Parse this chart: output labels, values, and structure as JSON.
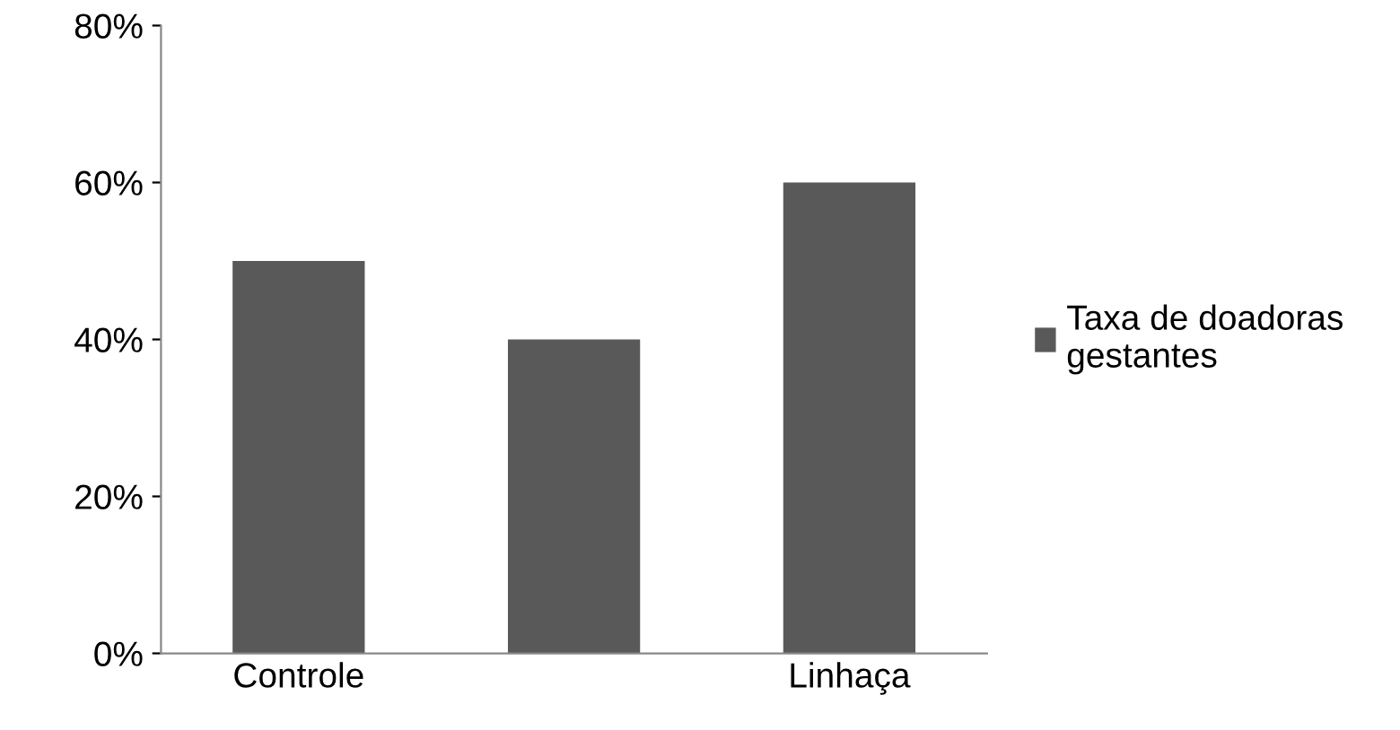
{
  "chart_data": {
    "type": "bar",
    "categories": [
      "Controle",
      null,
      "Linhaça"
    ],
    "series": [
      {
        "name": "Taxa de doadoras gestantes",
        "color": "#595959",
        "values": [
          50,
          40,
          60
        ]
      }
    ],
    "ylim": [
      0,
      80
    ],
    "yticks": [
      {
        "value": 0,
        "label": "0%"
      },
      {
        "value": 20,
        "label": "20%"
      },
      {
        "value": 40,
        "label": "40%"
      },
      {
        "value": 60,
        "label": "60%"
      },
      {
        "value": 80,
        "label": "80%"
      }
    ],
    "grid": false,
    "legend": "right"
  }
}
